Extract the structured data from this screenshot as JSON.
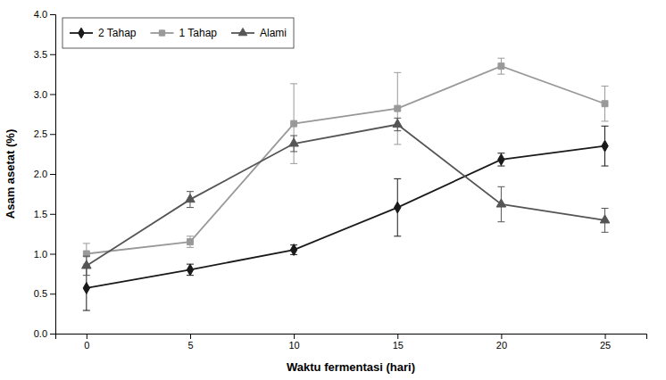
{
  "chart_data": {
    "type": "line",
    "x_label": "Waktu fermentasi (hari)",
    "y_label": "Asam asetat (%)",
    "x": [
      0,
      5,
      10,
      15,
      20,
      25
    ],
    "series": [
      {
        "name": "2 Tahap",
        "color": "#1a1a1a",
        "marker": "diamond",
        "line_style": "solid",
        "values": [
          0.57,
          0.8,
          1.05,
          1.58,
          2.18,
          2.35
        ],
        "errors": [
          0.28,
          0.07,
          0.06,
          0.36,
          0.08,
          0.25
        ]
      },
      {
        "name": "1 Tahap",
        "color": "#999999",
        "marker": "square",
        "line_style": "solid",
        "values": [
          1.0,
          1.15,
          2.63,
          2.82,
          3.35,
          2.88
        ],
        "errors": [
          0.13,
          0.07,
          0.5,
          0.45,
          0.1,
          0.22
        ]
      },
      {
        "name": "Alami",
        "color": "#555555",
        "marker": "triangle",
        "line_style": "solid",
        "values": [
          0.85,
          1.68,
          2.38,
          2.62,
          1.62,
          1.42
        ],
        "errors": [
          0.12,
          0.1,
          0.1,
          0.08,
          0.22,
          0.15
        ]
      }
    ],
    "xlim": [
      -1.5,
      27
    ],
    "xticks": [
      0,
      5,
      10,
      15,
      20,
      25
    ],
    "ylim": [
      0.0,
      4.0
    ],
    "yticks": [
      {
        "value": 0.0,
        "label": "0.0"
      },
      0.5,
      {
        "value": 1.0,
        "label": "1.0"
      },
      1.5,
      {
        "value": 2.0,
        "label": "2.0"
      },
      2.5,
      {
        "value": 3.0,
        "label": "3.0"
      },
      3.5,
      {
        "value": 4.0,
        "label": "4.0"
      }
    ],
    "grid": false,
    "legend": "top-left"
  }
}
